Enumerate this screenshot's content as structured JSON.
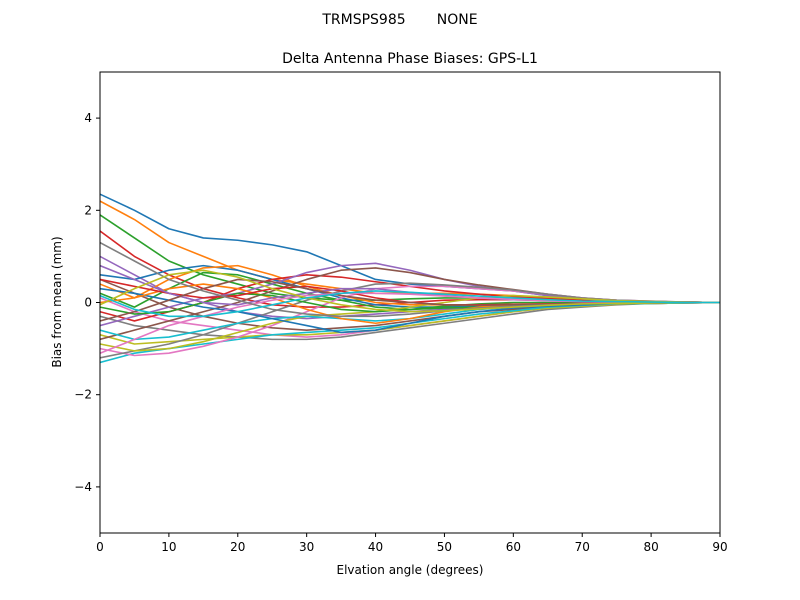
{
  "chart_data": {
    "type": "line",
    "suptitle": "TRMSPS985       NONE",
    "title": "Delta Antenna Phase Biases: GPS-L1",
    "xlabel": "Elvation angle (degrees)",
    "ylabel": "Bias from mean (mm)",
    "xlim": [
      0,
      90
    ],
    "ylim": [
      -5,
      5
    ],
    "xticks": [
      "0",
      "10",
      "20",
      "30",
      "40",
      "50",
      "60",
      "70",
      "80",
      "90"
    ],
    "yticks": [
      "−4",
      "−2",
      "0",
      "2",
      "4"
    ],
    "grid": false,
    "legend": "none",
    "x": [
      0,
      5,
      10,
      15,
      20,
      25,
      30,
      35,
      40,
      45,
      50,
      55,
      60,
      65,
      70,
      75,
      80,
      85,
      90
    ],
    "colors": [
      "#1f77b4",
      "#ff7f0e",
      "#2ca02c",
      "#d62728",
      "#9467bd",
      "#8c564b",
      "#e377c2",
      "#7f7f7f",
      "#bcbd22",
      "#17becf"
    ],
    "series": [
      {
        "values": [
          2.35,
          2.0,
          1.6,
          1.4,
          1.35,
          1.25,
          1.1,
          0.8,
          0.5,
          0.4,
          0.35,
          0.3,
          0.25,
          0.15,
          0.08,
          0.04,
          0.02,
          0.01,
          0
        ]
      },
      {
        "values": [
          2.2,
          1.8,
          1.3,
          1.0,
          0.7,
          0.5,
          0.4,
          0.3,
          0.2,
          0.2,
          0.2,
          0.18,
          0.15,
          0.1,
          0.05,
          0.03,
          0.02,
          0.01,
          0
        ]
      },
      {
        "values": [
          1.9,
          1.4,
          0.9,
          0.6,
          0.4,
          0.2,
          0.1,
          0.05,
          0.05,
          0.08,
          0.1,
          0.1,
          0.1,
          0.08,
          0.05,
          0.03,
          0.02,
          0.01,
          0
        ]
      },
      {
        "values": [
          1.55,
          1.0,
          0.6,
          0.3,
          0.1,
          -0.05,
          -0.1,
          -0.1,
          -0.05,
          0.0,
          0.05,
          0.06,
          0.06,
          0.05,
          0.03,
          0.02,
          0.01,
          0.0,
          0
        ]
      },
      {
        "values": [
          1.0,
          0.6,
          0.2,
          0.0,
          -0.2,
          -0.3,
          -0.35,
          -0.3,
          -0.25,
          -0.2,
          -0.15,
          -0.1,
          -0.08,
          -0.05,
          -0.03,
          -0.02,
          -0.01,
          0.0,
          0
        ]
      },
      {
        "values": [
          0.5,
          0.2,
          -0.1,
          -0.3,
          -0.45,
          -0.55,
          -0.6,
          -0.55,
          -0.5,
          -0.4,
          -0.3,
          -0.2,
          -0.15,
          -0.1,
          -0.06,
          -0.03,
          -0.02,
          -0.01,
          0
        ]
      },
      {
        "values": [
          0.1,
          -0.2,
          -0.4,
          -0.5,
          -0.6,
          -0.7,
          -0.75,
          -0.7,
          -0.6,
          -0.5,
          -0.4,
          -0.3,
          -0.2,
          -0.12,
          -0.08,
          -0.04,
          -0.02,
          -0.01,
          0
        ]
      },
      {
        "values": [
          -0.3,
          -0.5,
          -0.6,
          -0.7,
          -0.75,
          -0.8,
          -0.8,
          -0.75,
          -0.65,
          -0.55,
          -0.45,
          -0.35,
          -0.25,
          -0.15,
          -0.1,
          -0.05,
          -0.02,
          -0.01,
          0
        ]
      },
      {
        "values": [
          -0.7,
          -0.9,
          -0.85,
          -0.8,
          -0.75,
          -0.7,
          -0.7,
          -0.65,
          -0.6,
          -0.5,
          -0.4,
          -0.3,
          -0.2,
          -0.12,
          -0.08,
          -0.04,
          -0.02,
          -0.01,
          0
        ]
      },
      {
        "values": [
          -1.3,
          -1.1,
          -1.0,
          -0.9,
          -0.8,
          -0.7,
          -0.65,
          -0.6,
          -0.55,
          -0.45,
          -0.35,
          -0.25,
          -0.18,
          -0.1,
          -0.06,
          -0.03,
          -0.02,
          -0.01,
          0
        ]
      },
      {
        "values": [
          0.6,
          0.5,
          0.7,
          0.8,
          0.7,
          0.5,
          0.3,
          0.1,
          -0.05,
          -0.1,
          -0.1,
          -0.08,
          -0.06,
          -0.05,
          -0.03,
          -0.02,
          -0.01,
          0.0,
          0
        ]
      },
      {
        "values": [
          0.4,
          0.1,
          0.5,
          0.75,
          0.8,
          0.6,
          0.35,
          0.15,
          0.0,
          -0.05,
          -0.05,
          -0.05,
          -0.04,
          -0.03,
          -0.02,
          -0.01,
          -0.01,
          0.0,
          0
        ]
      },
      {
        "values": [
          0.2,
          -0.1,
          0.3,
          0.65,
          0.6,
          0.4,
          0.2,
          0.05,
          -0.1,
          -0.15,
          -0.12,
          -0.1,
          -0.08,
          -0.05,
          -0.03,
          -0.02,
          -0.01,
          0.0,
          0
        ]
      },
      {
        "values": [
          -0.2,
          -0.4,
          -0.2,
          0.0,
          0.3,
          0.5,
          0.6,
          0.55,
          0.45,
          0.35,
          0.25,
          0.18,
          0.12,
          0.08,
          0.05,
          0.03,
          0.02,
          0.01,
          0
        ]
      },
      {
        "values": [
          -0.5,
          -0.3,
          -0.1,
          0.1,
          0.2,
          0.4,
          0.65,
          0.8,
          0.85,
          0.7,
          0.5,
          0.35,
          0.25,
          0.15,
          0.08,
          0.04,
          0.02,
          0.01,
          0
        ]
      },
      {
        "values": [
          -0.8,
          -0.6,
          -0.4,
          -0.2,
          0.0,
          0.25,
          0.5,
          0.7,
          0.75,
          0.65,
          0.5,
          0.38,
          0.28,
          0.18,
          0.1,
          0.05,
          0.02,
          0.01,
          0
        ]
      },
      {
        "values": [
          -1.0,
          -1.15,
          -1.1,
          -0.95,
          -0.75,
          -0.5,
          -0.2,
          0.1,
          0.3,
          0.35,
          0.35,
          0.3,
          0.25,
          0.18,
          0.1,
          0.05,
          0.03,
          0.01,
          0
        ]
      },
      {
        "values": [
          -1.2,
          -1.05,
          -0.9,
          -0.7,
          -0.45,
          -0.2,
          0.05,
          0.25,
          0.4,
          0.42,
          0.38,
          0.33,
          0.27,
          0.18,
          0.1,
          0.05,
          0.03,
          0.01,
          0
        ]
      },
      {
        "values": [
          -0.9,
          -1.05,
          -1.0,
          -0.85,
          -0.65,
          -0.45,
          -0.3,
          -0.25,
          -0.2,
          -0.1,
          0.0,
          0.1,
          0.15,
          0.12,
          0.08,
          0.04,
          0.02,
          0.01,
          0
        ]
      },
      {
        "values": [
          -0.6,
          -0.8,
          -0.75,
          -0.6,
          -0.45,
          -0.35,
          -0.3,
          -0.35,
          -0.4,
          -0.35,
          -0.25,
          -0.15,
          -0.1,
          -0.06,
          -0.04,
          -0.02,
          -0.01,
          0.0,
          0
        ]
      },
      {
        "values": [
          0.3,
          0.2,
          0.05,
          -0.1,
          -0.2,
          -0.35,
          -0.5,
          -0.65,
          -0.6,
          -0.45,
          -0.3,
          -0.2,
          -0.12,
          -0.08,
          -0.05,
          -0.02,
          -0.01,
          0.0,
          0
        ]
      },
      {
        "values": [
          0.0,
          0.1,
          0.3,
          0.4,
          0.3,
          0.1,
          -0.15,
          -0.35,
          -0.45,
          -0.35,
          -0.2,
          -0.1,
          -0.05,
          -0.03,
          -0.02,
          -0.01,
          0.0,
          0.0,
          0
        ]
      },
      {
        "values": [
          -0.1,
          -0.25,
          -0.2,
          0.0,
          0.2,
          0.15,
          0.0,
          -0.15,
          -0.2,
          -0.15,
          -0.08,
          -0.03,
          0.0,
          0.0,
          0.0,
          0.0,
          0.0,
          0.0,
          0
        ]
      },
      {
        "values": [
          0.5,
          0.35,
          0.2,
          0.1,
          0.15,
          0.3,
          0.35,
          0.25,
          0.1,
          0.0,
          -0.05,
          -0.05,
          -0.04,
          -0.03,
          -0.02,
          -0.01,
          0.0,
          0.0,
          0
        ]
      },
      {
        "values": [
          0.8,
          0.5,
          0.2,
          0.0,
          -0.05,
          0.1,
          0.2,
          0.3,
          0.3,
          0.22,
          0.15,
          0.1,
          0.06,
          0.04,
          0.02,
          0.01,
          0.0,
          0.0,
          0
        ]
      },
      {
        "values": [
          -0.4,
          -0.2,
          0.05,
          0.3,
          0.5,
          0.45,
          0.3,
          0.15,
          0.05,
          0.0,
          -0.05,
          -0.06,
          -0.05,
          -0.04,
          -0.02,
          -0.01,
          -0.01,
          0.0,
          0
        ]
      },
      {
        "values": [
          -1.1,
          -0.8,
          -0.5,
          -0.3,
          -0.1,
          0.05,
          0.15,
          0.2,
          0.2,
          0.18,
          0.14,
          0.1,
          0.07,
          0.04,
          0.02,
          0.01,
          0.0,
          0.0,
          0
        ]
      },
      {
        "values": [
          1.3,
          0.9,
          0.5,
          0.25,
          0.05,
          -0.15,
          -0.25,
          -0.3,
          -0.3,
          -0.25,
          -0.18,
          -0.12,
          -0.08,
          -0.05,
          -0.03,
          -0.02,
          -0.01,
          0.0,
          0
        ]
      },
      {
        "values": [
          -0.05,
          0.3,
          0.6,
          0.7,
          0.55,
          0.3,
          0.1,
          -0.05,
          -0.15,
          -0.2,
          -0.18,
          -0.14,
          -0.1,
          -0.06,
          -0.03,
          -0.02,
          -0.01,
          0.0,
          0
        ]
      },
      {
        "values": [
          0.15,
          -0.15,
          -0.3,
          -0.3,
          -0.2,
          -0.05,
          0.1,
          0.2,
          0.25,
          0.22,
          0.18,
          0.14,
          0.1,
          0.06,
          0.03,
          0.02,
          0.01,
          0.0,
          0
        ]
      }
    ]
  }
}
